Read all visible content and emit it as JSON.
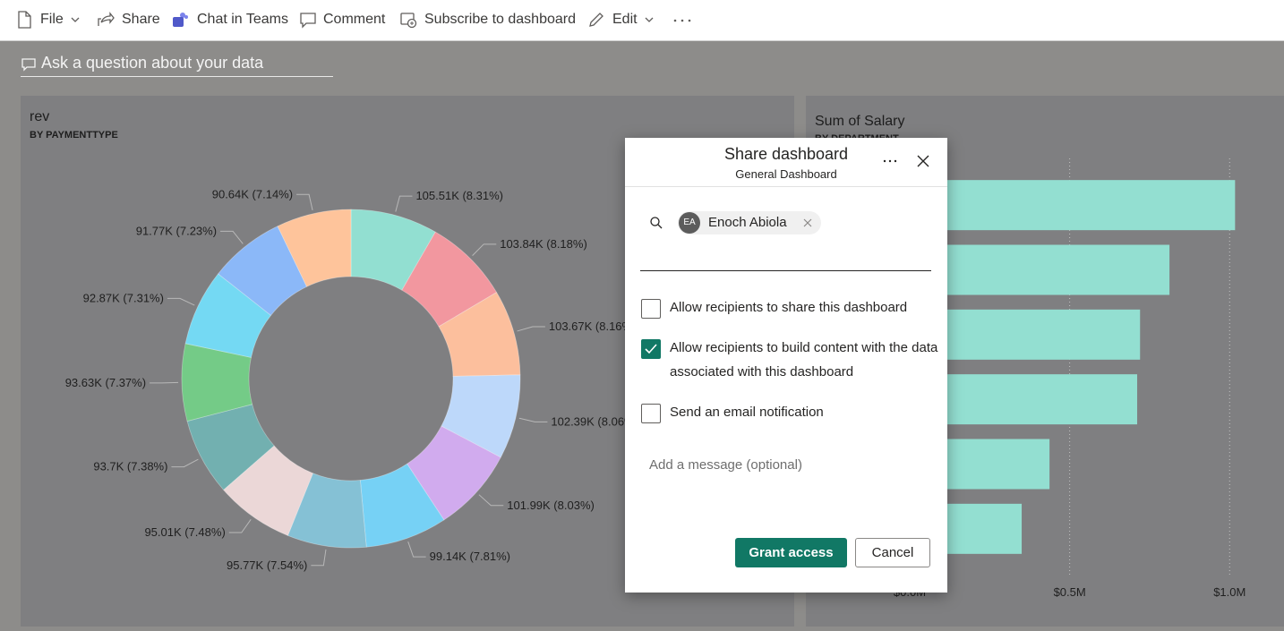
{
  "toolbar": {
    "items": [
      "File",
      "Share",
      "Chat in Teams",
      "Comment",
      "Subscribe to dashboard",
      "Edit"
    ]
  },
  "qna": {
    "placeholder": "Ask a question about your data"
  },
  "chart_data": [
    {
      "type": "donut",
      "title": "rev",
      "subtitle": "BY PAYMENTTYPE",
      "values": [
        105510,
        103840,
        103670,
        102390,
        101990,
        99140,
        95770,
        95010,
        93700,
        93630,
        92870,
        91770,
        90640
      ],
      "value_labels": [
        "105.51K (8.31%)",
        "103.84K (8.18%)",
        "103.67K (8.16%)",
        "102.39K (8.06%)",
        "101.99K (8.03%)",
        "99.14K (7.81%)",
        "95.77K (7.54%)",
        "95.01K (7.48%)",
        "93.7K (7.38%)",
        "93.63K (7.37%)",
        "92.87K (7.31%)",
        "91.77K (7.23%)",
        "90.64K (7.14%)"
      ],
      "colors": [
        "#92dfd1",
        "#f2979f",
        "#fcbf9d",
        "#bdd8fa",
        "#d1abee",
        "#76d1f5",
        "#85c1d5",
        "#ebd7d7",
        "#72b0b0",
        "#74cb87",
        "#74d9f3",
        "#8bb8f8",
        "#fec49b"
      ]
    },
    {
      "type": "bar",
      "orientation": "horizontal",
      "title": "Sum of Salary",
      "subtitle": "BY DEPARTMENT",
      "values": [
        1017000,
        812000,
        720000,
        711000,
        437000,
        350000
      ],
      "color": "#93dfd1",
      "xlim": [
        0,
        1100000
      ],
      "xticks": [
        {
          "value": 0,
          "label": "$0.0M"
        },
        {
          "value": 500000,
          "label": "$0.5M"
        },
        {
          "value": 1000000,
          "label": "$1.0M"
        }
      ],
      "grid": true
    }
  ],
  "dialog": {
    "title": "Share dashboard",
    "subtitle": "General Dashboard",
    "recipient": {
      "initials": "EA",
      "name": "Enoch Abiola"
    },
    "options": [
      {
        "label": "Allow recipients to share this dashboard",
        "checked": false
      },
      {
        "label": "Allow recipients to build content with the data associated with this dashboard",
        "checked": true
      },
      {
        "label": "Send an email notification",
        "checked": false
      }
    ],
    "message_placeholder": "Add a message (optional)",
    "buttons": [
      "Grant access",
      "Cancel"
    ]
  }
}
